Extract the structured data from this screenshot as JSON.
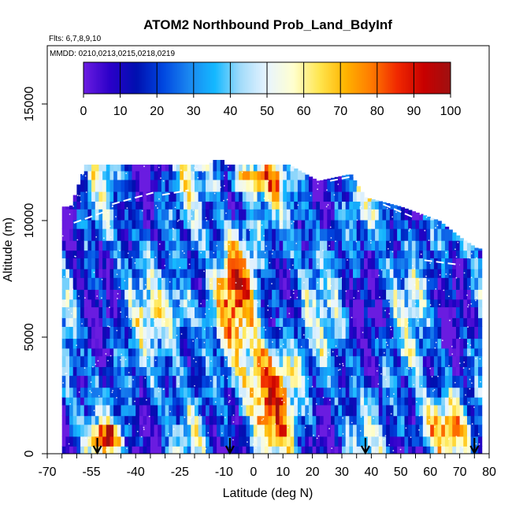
{
  "chart_data": {
    "type": "heatmap",
    "title": "ATOM2 Northbound Prob_Land_BdyInf",
    "subtitle": "Flts: 6,7,8,9,10",
    "annotation": "MMDD: 0210,0213,0215,0218,0219",
    "xlabel": "Latitude (deg N)",
    "ylabel": "Altitude (m)",
    "x_ticks": [
      "-70",
      "-55",
      "-40",
      "-25",
      "-10",
      "0",
      "10",
      "20",
      "30",
      "40",
      "50",
      "60",
      "70",
      "80"
    ],
    "x_tick_values": [
      -70,
      -55,
      -40,
      -25,
      -10,
      0,
      10,
      20,
      30,
      40,
      50,
      60,
      70,
      80
    ],
    "y_ticks": [
      "0",
      "5000",
      "10000",
      "15000"
    ],
    "y_tick_values": [
      0,
      5000,
      10000,
      15000
    ],
    "xlim": [
      -70,
      80
    ],
    "ylim": [
      0,
      17500
    ],
    "colorbar": {
      "ticks": [
        "0",
        "10",
        "20",
        "30",
        "40",
        "50",
        "60",
        "70",
        "80",
        "90",
        "100"
      ],
      "range": [
        0,
        100
      ],
      "colors": [
        "#6a1ce0",
        "#2a00c8",
        "#0010b0",
        "#0046e0",
        "#1a86f0",
        "#14b8ff",
        "#a4dcfa",
        "#e8f4ff",
        "#ffffd0",
        "#ffe650",
        "#ffb400",
        "#ff7a00",
        "#f02800",
        "#c80000",
        "#a01010"
      ]
    },
    "arrow_latitudes": [
      -53,
      -8,
      38,
      75
    ],
    "altitude_profile_top": [
      {
        "lat": -62,
        "alt": 10600
      },
      {
        "lat": -57,
        "alt": 12400
      },
      {
        "lat": -45,
        "alt": 12400
      },
      {
        "lat": -15,
        "alt": 12400
      },
      {
        "lat": -11,
        "alt": 12900
      },
      {
        "lat": -10,
        "alt": 12400
      },
      {
        "lat": 12,
        "alt": 12400
      },
      {
        "lat": 22,
        "alt": 11700
      },
      {
        "lat": 33,
        "alt": 12000
      },
      {
        "lat": 38,
        "alt": 11000
      },
      {
        "lat": 50,
        "alt": 10600
      },
      {
        "lat": 63,
        "alt": 10000
      },
      {
        "lat": 70,
        "alt": 9300
      },
      {
        "lat": 76,
        "alt": 8800
      }
    ],
    "notes": "Curtain of probability (%) vs latitude and altitude, shown as color bands"
  }
}
